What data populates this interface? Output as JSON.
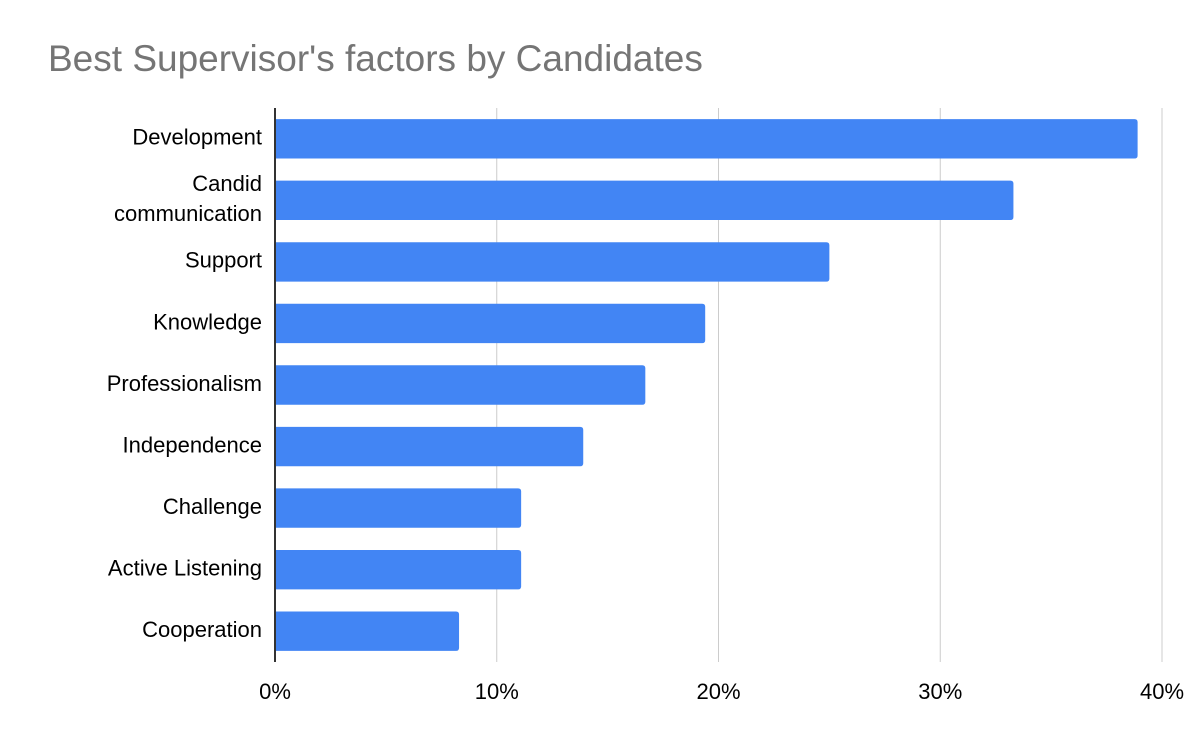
{
  "chart_data": {
    "type": "bar",
    "orientation": "horizontal",
    "title": "Best Supervisor's factors by Candidates",
    "xlabel": "",
    "ylabel": "",
    "categories": [
      [
        "Development"
      ],
      [
        "Candid",
        "communication"
      ],
      [
        "Support"
      ],
      [
        "Knowledge"
      ],
      [
        "Professionalism"
      ],
      [
        "Independence"
      ],
      [
        "Challenge"
      ],
      [
        "Active Listening"
      ],
      [
        "Cooperation"
      ]
    ],
    "values": [
      38.9,
      33.3,
      25.0,
      19.4,
      16.7,
      13.9,
      11.1,
      11.1,
      8.3
    ],
    "xlim": [
      0,
      40
    ],
    "x_ticks": [
      0,
      10,
      20,
      30,
      40
    ],
    "x_tick_labels": [
      "0%",
      "10%",
      "20%",
      "30%",
      "40%"
    ],
    "grid": "vertical",
    "legend": "none",
    "bar_color": "#4285f4",
    "grid_color": "#cccccc",
    "axis_color": "#333333"
  }
}
